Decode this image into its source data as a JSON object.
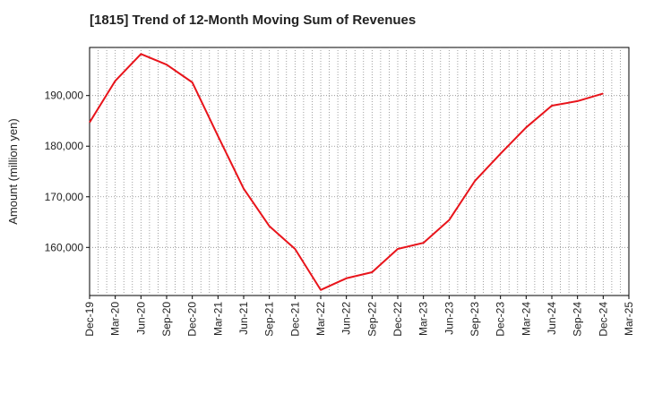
{
  "chart_data": {
    "type": "line",
    "title": "[1815]  Trend of 12-Month Moving Sum of Revenues",
    "xlabel": "",
    "ylabel": "Amount (million yen)",
    "x": [
      "Dec-19",
      "Mar-20",
      "Jun-20",
      "Sep-20",
      "Dec-20",
      "Mar-21",
      "Jun-21",
      "Sep-21",
      "Dec-21",
      "Mar-22",
      "Jun-22",
      "Sep-22",
      "Dec-22",
      "Mar-23",
      "Jun-23",
      "Sep-23",
      "Dec-23",
      "Mar-24",
      "Jun-24",
      "Sep-24",
      "Dec-24",
      "Mar-25"
    ],
    "series": [
      {
        "values": [
          184700,
          192900,
          198200,
          196100,
          192600,
          182000,
          171600,
          164200,
          159700,
          151600,
          153900,
          155100,
          159700,
          160900,
          165400,
          173100,
          178500,
          183700,
          188000,
          188900,
          190400,
          null
        ],
        "color": "#e8141b"
      }
    ],
    "ylim": [
      150500,
      199500
    ],
    "yticks": [
      160000,
      170000,
      180000,
      190000
    ],
    "ytick_labels": [
      "160,000",
      "170,000",
      "180,000",
      "190,000"
    ],
    "grid": true
  }
}
